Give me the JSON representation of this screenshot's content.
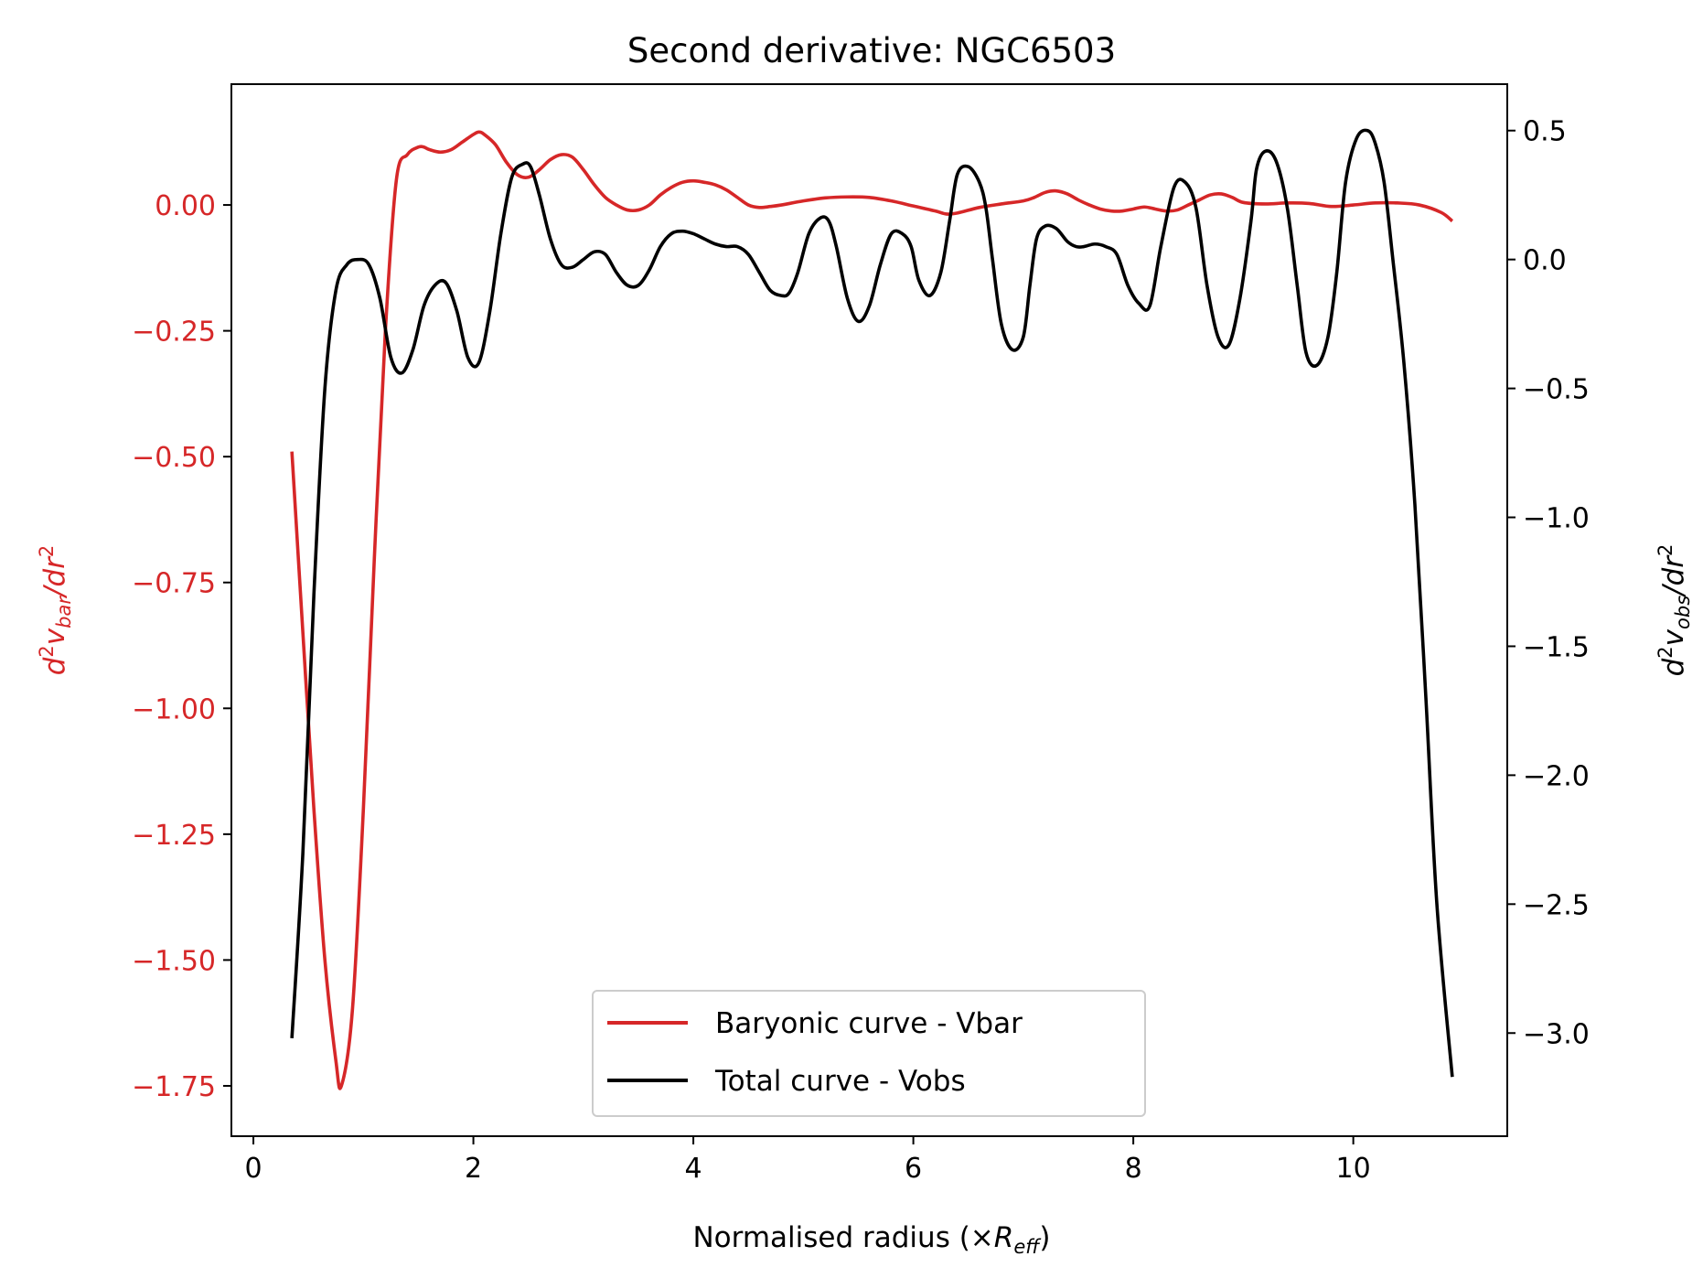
{
  "chart_data": {
    "type": "line",
    "title": "Second derivative: NGC6503",
    "xlabel": "Normalised radius (×R_eff)",
    "xlabel_parts": {
      "prefix": "Normalised radius (×",
      "symbol": "R",
      "subscript": "eff",
      "suffix": ")"
    },
    "ylabel_left_parts": {
      "d": "d",
      "sup1": "2",
      "v": "v",
      "sub": "bar",
      "slash": "/dr",
      "sup2": "2"
    },
    "ylabel_right_parts": {
      "d": "d",
      "sup1": "2",
      "v": "v",
      "sub": "obs",
      "slash": "/dr",
      "sup2": "2"
    },
    "xlim": [
      -0.2,
      11.4
    ],
    "ylim_left": [
      -1.85,
      0.24
    ],
    "ylim_right": [
      -3.4,
      0.68
    ],
    "x_ticks": [
      "0",
      "2",
      "4",
      "6",
      "8",
      "10"
    ],
    "x_tick_values": [
      0,
      2,
      4,
      6,
      8,
      10
    ],
    "y_left_ticks": [
      "0.00",
      "−0.25",
      "−0.50",
      "−0.75",
      "−1.00",
      "−1.25",
      "−1.50",
      "−1.75"
    ],
    "y_left_tick_values": [
      0,
      -0.25,
      -0.5,
      -0.75,
      -1.0,
      -1.25,
      -1.5,
      -1.75
    ],
    "y_right_ticks": [
      "0.5",
      "0.0",
      "−0.5",
      "−1.0",
      "−1.5",
      "−2.0",
      "−2.5",
      "−3.0"
    ],
    "y_right_tick_values": [
      0.5,
      0.0,
      -0.5,
      -1.0,
      -1.5,
      -2.0,
      -2.5,
      -3.0
    ],
    "legend_position": "lower center",
    "series": [
      {
        "name": "Baryonic curve - Vbar",
        "color": "#d62728",
        "axis": "left",
        "x": [
          0.35,
          0.45,
          0.55,
          0.65,
          0.75,
          0.8,
          0.9,
          1.0,
          1.1,
          1.2,
          1.3,
          1.4,
          1.5,
          1.55,
          1.6,
          1.7,
          1.8,
          1.9,
          2.0,
          2.05,
          2.1,
          2.2,
          2.3,
          2.4,
          2.5,
          2.6,
          2.7,
          2.8,
          2.9,
          3.0,
          3.1,
          3.2,
          3.3,
          3.4,
          3.5,
          3.6,
          3.7,
          3.8,
          3.9,
          4.0,
          4.1,
          4.2,
          4.3,
          4.4,
          4.5,
          4.6,
          4.7,
          4.8,
          5.0,
          5.2,
          5.4,
          5.6,
          5.8,
          6.0,
          6.2,
          6.3,
          6.4,
          6.6,
          6.8,
          7.0,
          7.1,
          7.2,
          7.3,
          7.4,
          7.5,
          7.6,
          7.7,
          7.8,
          7.9,
          8.0,
          8.1,
          8.2,
          8.3,
          8.4,
          8.5,
          8.6,
          8.7,
          8.8,
          8.9,
          9.0,
          9.2,
          9.4,
          9.6,
          9.8,
          10.0,
          10.2,
          10.4,
          10.6,
          10.8,
          10.9
        ],
        "y": [
          -0.49,
          -0.85,
          -1.2,
          -1.5,
          -1.7,
          -1.75,
          -1.6,
          -1.2,
          -0.7,
          -0.25,
          0.05,
          0.1,
          0.115,
          0.115,
          0.11,
          0.105,
          0.11,
          0.125,
          0.14,
          0.145,
          0.14,
          0.12,
          0.085,
          0.06,
          0.055,
          0.07,
          0.09,
          0.1,
          0.095,
          0.07,
          0.04,
          0.015,
          0.0,
          -0.01,
          -0.01,
          0.0,
          0.02,
          0.035,
          0.045,
          0.048,
          0.045,
          0.04,
          0.03,
          0.015,
          0.0,
          -0.005,
          -0.003,
          0.0,
          0.008,
          0.014,
          0.016,
          0.015,
          0.008,
          -0.002,
          -0.012,
          -0.018,
          -0.016,
          -0.005,
          0.002,
          0.008,
          0.015,
          0.025,
          0.028,
          0.022,
          0.01,
          0.0,
          -0.008,
          -0.012,
          -0.012,
          -0.008,
          -0.004,
          -0.008,
          -0.012,
          -0.01,
          0.0,
          0.01,
          0.02,
          0.022,
          0.015,
          0.005,
          0.002,
          0.004,
          0.003,
          -0.003,
          0.0,
          0.004,
          0.004,
          0.0,
          -0.015,
          -0.032
        ]
      },
      {
        "name": "Total curve - Vobs",
        "color": "#000000",
        "axis": "right",
        "x": [
          0.35,
          0.45,
          0.55,
          0.65,
          0.75,
          0.85,
          0.95,
          1.05,
          1.15,
          1.25,
          1.35,
          1.45,
          1.55,
          1.65,
          1.75,
          1.85,
          1.95,
          2.05,
          2.15,
          2.25,
          2.35,
          2.45,
          2.52,
          2.6,
          2.7,
          2.8,
          2.9,
          3.0,
          3.1,
          3.2,
          3.3,
          3.4,
          3.5,
          3.6,
          3.7,
          3.8,
          3.9,
          4.0,
          4.1,
          4.2,
          4.3,
          4.4,
          4.5,
          4.6,
          4.7,
          4.8,
          4.87,
          4.95,
          5.05,
          5.15,
          5.23,
          5.3,
          5.4,
          5.5,
          5.6,
          5.7,
          5.8,
          5.9,
          5.98,
          6.05,
          6.15,
          6.25,
          6.33,
          6.4,
          6.5,
          6.6,
          6.66,
          6.72,
          6.8,
          6.9,
          7.0,
          7.06,
          7.12,
          7.2,
          7.3,
          7.4,
          7.48,
          7.55,
          7.65,
          7.75,
          7.85,
          7.95,
          8.05,
          8.15,
          8.25,
          8.37,
          8.47,
          8.57,
          8.67,
          8.77,
          8.87,
          8.97,
          9.07,
          9.12,
          9.2,
          9.3,
          9.4,
          9.49,
          9.57,
          9.67,
          9.77,
          9.85,
          9.93,
          10.03,
          10.13,
          10.2,
          10.28,
          10.36,
          10.46,
          10.56,
          10.66,
          10.76,
          10.9
        ],
        "y": [
          -3.02,
          -2.3,
          -1.3,
          -0.5,
          -0.12,
          -0.02,
          0.0,
          -0.02,
          -0.15,
          -0.38,
          -0.44,
          -0.35,
          -0.18,
          -0.1,
          -0.09,
          -0.2,
          -0.38,
          -0.4,
          -0.2,
          0.1,
          0.32,
          0.37,
          0.36,
          0.25,
          0.08,
          -0.02,
          -0.03,
          0.0,
          0.03,
          0.02,
          -0.05,
          -0.1,
          -0.1,
          -0.04,
          0.05,
          0.1,
          0.11,
          0.1,
          0.08,
          0.06,
          0.05,
          0.05,
          0.02,
          -0.05,
          -0.12,
          -0.14,
          -0.13,
          -0.05,
          0.1,
          0.16,
          0.15,
          0.05,
          -0.15,
          -0.24,
          -0.18,
          -0.02,
          0.1,
          0.1,
          0.05,
          -0.08,
          -0.14,
          -0.05,
          0.15,
          0.33,
          0.36,
          0.3,
          0.2,
          0.0,
          -0.25,
          -0.35,
          -0.3,
          -0.1,
          0.08,
          0.13,
          0.12,
          0.07,
          0.05,
          0.05,
          0.06,
          0.05,
          0.02,
          -0.1,
          -0.17,
          -0.18,
          0.05,
          0.28,
          0.3,
          0.2,
          -0.1,
          -0.3,
          -0.33,
          -0.15,
          0.15,
          0.35,
          0.42,
          0.38,
          0.2,
          -0.1,
          -0.36,
          -0.41,
          -0.3,
          -0.05,
          0.3,
          0.47,
          0.5,
          0.45,
          0.3,
          0.0,
          -0.4,
          -0.95,
          -1.7,
          -2.5,
          -3.17
        ]
      }
    ]
  }
}
